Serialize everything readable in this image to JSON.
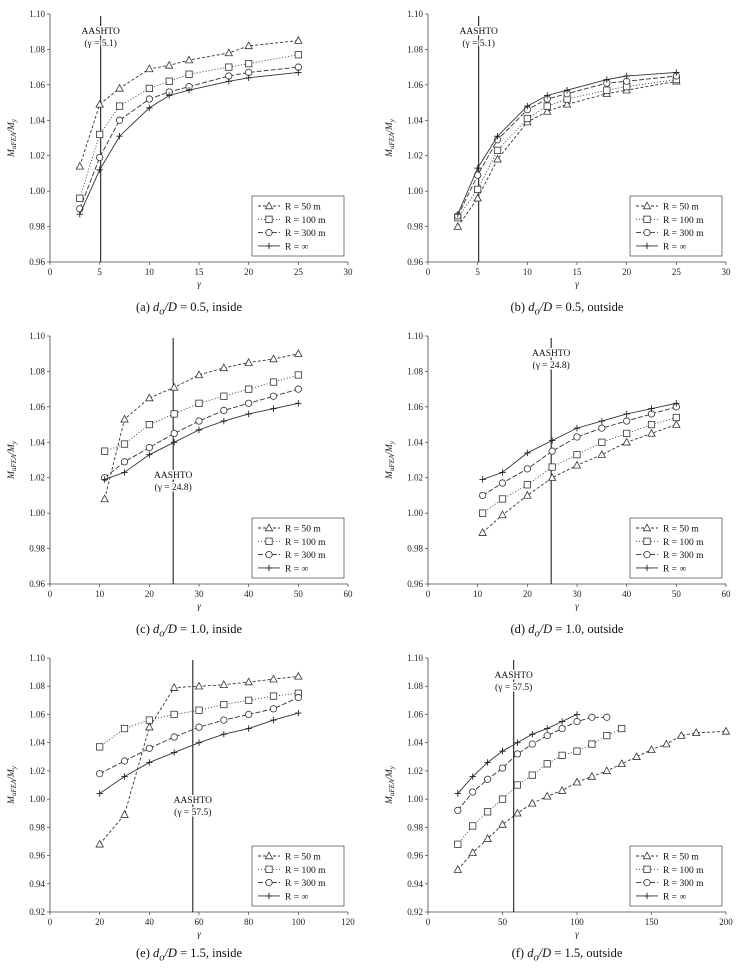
{
  "figure": {
    "series_meta": [
      {
        "key": "r50",
        "label": "R = 50 m",
        "marker": "triangle",
        "dash": "3,2"
      },
      {
        "key": "r100",
        "label": "R = 100 m",
        "marker": "square",
        "dash": "1,2"
      },
      {
        "key": "r300",
        "label": "R = 300 m",
        "marker": "circle",
        "dash": "5,2"
      },
      {
        "key": "rinf",
        "label": "R = ∞",
        "marker": "plus",
        "dash": ""
      }
    ]
  },
  "chart_data": [
    {
      "id": "a",
      "type": "line",
      "caption": "(a) do/D = 0.5, inside",
      "caption_parts": {
        "pre": "(a) ",
        "var": "d",
        "sub": "o",
        "post": "/D = 0.5, inside"
      },
      "xlabel": "γ",
      "ylabel": "MuFEA/My",
      "xlim": [
        0,
        30
      ],
      "ylim": [
        0.96,
        1.1
      ],
      "xticks": [
        0,
        5,
        10,
        15,
        20,
        25,
        30
      ],
      "yticks": [
        0.96,
        0.98,
        1.0,
        1.02,
        1.04,
        1.06,
        1.08,
        1.1
      ],
      "aashto": {
        "x": 5.1,
        "label": "AASHTO",
        "value": "(γ = 5.1)",
        "label_pos": "top"
      },
      "legend": "bottom-right",
      "series": [
        {
          "name": "R = 50 m",
          "x": [
            3,
            5,
            7,
            10,
            12,
            14,
            18,
            20,
            25
          ],
          "y": [
            1.014,
            1.049,
            1.058,
            1.069,
            1.071,
            1.074,
            1.078,
            1.082,
            1.085
          ]
        },
        {
          "name": "R = 100 m",
          "x": [
            3,
            5,
            7,
            10,
            12,
            14,
            18,
            20,
            25
          ],
          "y": [
            0.996,
            1.032,
            1.048,
            1.058,
            1.062,
            1.066,
            1.07,
            1.072,
            1.077
          ]
        },
        {
          "name": "R = 300 m",
          "x": [
            3,
            5,
            7,
            10,
            12,
            14,
            18,
            20,
            25
          ],
          "y": [
            0.99,
            1.019,
            1.04,
            1.052,
            1.056,
            1.059,
            1.065,
            1.067,
            1.07
          ]
        },
        {
          "name": "R = ∞",
          "x": [
            3,
            5,
            7,
            10,
            12,
            14,
            18,
            20,
            25
          ],
          "y": [
            0.987,
            1.012,
            1.031,
            1.047,
            1.054,
            1.057,
            1.062,
            1.064,
            1.067
          ]
        }
      ]
    },
    {
      "id": "b",
      "type": "line",
      "caption": "(b) do/D = 0.5, outside",
      "caption_parts": {
        "pre": "(b) ",
        "var": "d",
        "sub": "o",
        "post": "/D = 0.5, outside"
      },
      "xlabel": "γ",
      "ylabel": "MuFEA/My",
      "xlim": [
        0,
        30
      ],
      "ylim": [
        0.96,
        1.1
      ],
      "xticks": [
        0,
        5,
        10,
        15,
        20,
        25,
        30
      ],
      "yticks": [
        0.96,
        0.98,
        1.0,
        1.02,
        1.04,
        1.06,
        1.08,
        1.1
      ],
      "aashto": {
        "x": 5.1,
        "label": "AASHTO",
        "value": "(γ = 5.1)",
        "label_pos": "top"
      },
      "legend": "bottom-right",
      "series": [
        {
          "name": "R = 50 m",
          "x": [
            3,
            5,
            7,
            10,
            12,
            14,
            18,
            20,
            25
          ],
          "y": [
            0.98,
            0.996,
            1.018,
            1.039,
            1.045,
            1.049,
            1.055,
            1.057,
            1.062
          ]
        },
        {
          "name": "R = 100 m",
          "x": [
            3,
            5,
            7,
            10,
            12,
            14,
            18,
            20,
            25
          ],
          "y": [
            0.985,
            1.001,
            1.023,
            1.041,
            1.048,
            1.052,
            1.057,
            1.059,
            1.063
          ]
        },
        {
          "name": "R = 300 m",
          "x": [
            3,
            5,
            7,
            10,
            12,
            14,
            18,
            20,
            25
          ],
          "y": [
            0.986,
            1.009,
            1.029,
            1.046,
            1.052,
            1.055,
            1.061,
            1.062,
            1.065
          ]
        },
        {
          "name": "R = ∞",
          "x": [
            3,
            5,
            7,
            10,
            12,
            14,
            18,
            20,
            25
          ],
          "y": [
            0.987,
            1.013,
            1.031,
            1.048,
            1.054,
            1.057,
            1.063,
            1.065,
            1.067
          ]
        }
      ]
    },
    {
      "id": "c",
      "type": "line",
      "caption": "(c) do/D = 1.0, inside",
      "caption_parts": {
        "pre": "(c) ",
        "var": "d",
        "sub": "o",
        "post": "/D = 1.0, inside"
      },
      "xlabel": "γ",
      "ylabel": "MuFEA/My",
      "xlim": [
        0,
        60
      ],
      "ylim": [
        0.96,
        1.1
      ],
      "xticks": [
        0,
        10,
        20,
        30,
        40,
        50,
        60
      ],
      "yticks": [
        0.96,
        0.98,
        1.0,
        1.02,
        1.04,
        1.06,
        1.08,
        1.1
      ],
      "aashto": {
        "x": 24.8,
        "label": "AASHTO",
        "value": "(γ = 24.8)",
        "label_pos": "middle"
      },
      "legend": "bottom-right",
      "series": [
        {
          "name": "R = 50 m",
          "x": [
            11,
            15,
            20,
            25,
            30,
            35,
            40,
            45,
            50
          ],
          "y": [
            1.008,
            1.053,
            1.065,
            1.071,
            1.078,
            1.082,
            1.085,
            1.087,
            1.09
          ]
        },
        {
          "name": "R = 100 m",
          "x": [
            11,
            15,
            20,
            25,
            30,
            35,
            40,
            45,
            50
          ],
          "y": [
            1.035,
            1.039,
            1.05,
            1.056,
            1.062,
            1.066,
            1.07,
            1.074,
            1.078
          ]
        },
        {
          "name": "R = 300 m",
          "x": [
            11,
            15,
            20,
            25,
            30,
            35,
            40,
            45,
            50
          ],
          "y": [
            1.02,
            1.029,
            1.037,
            1.045,
            1.052,
            1.058,
            1.062,
            1.066,
            1.07
          ]
        },
        {
          "name": "R = ∞",
          "x": [
            11,
            15,
            20,
            25,
            30,
            35,
            40,
            45,
            50
          ],
          "y": [
            1.019,
            1.023,
            1.033,
            1.04,
            1.047,
            1.052,
            1.056,
            1.059,
            1.062
          ]
        }
      ]
    },
    {
      "id": "d",
      "type": "line",
      "caption": "(d) do/D = 1.0, outside",
      "caption_parts": {
        "pre": "(d) ",
        "var": "d",
        "sub": "o",
        "post": "/D = 1.0, outside"
      },
      "xlabel": "γ",
      "ylabel": "MuFEA/My",
      "xlim": [
        0,
        60
      ],
      "ylim": [
        0.96,
        1.1
      ],
      "xticks": [
        0,
        10,
        20,
        30,
        40,
        50,
        60
      ],
      "yticks": [
        0.96,
        0.98,
        1.0,
        1.02,
        1.04,
        1.06,
        1.08,
        1.1
      ],
      "aashto": {
        "x": 24.8,
        "label": "AASHTO",
        "value": "(γ = 24.8)",
        "label_pos": "top"
      },
      "legend": "bottom-right",
      "series": [
        {
          "name": "R = 50 m",
          "x": [
            11,
            15,
            20,
            25,
            30,
            35,
            40,
            45,
            50
          ],
          "y": [
            0.989,
            0.999,
            1.01,
            1.02,
            1.027,
            1.033,
            1.04,
            1.045,
            1.05
          ]
        },
        {
          "name": "R = 100 m",
          "x": [
            11,
            15,
            20,
            25,
            30,
            35,
            40,
            45,
            50
          ],
          "y": [
            1.0,
            1.008,
            1.016,
            1.026,
            1.033,
            1.04,
            1.045,
            1.05,
            1.054
          ]
        },
        {
          "name": "R = 300 m",
          "x": [
            11,
            15,
            20,
            25,
            30,
            35,
            40,
            45,
            50
          ],
          "y": [
            1.01,
            1.017,
            1.025,
            1.035,
            1.043,
            1.048,
            1.052,
            1.056,
            1.06
          ]
        },
        {
          "name": "R = ∞",
          "x": [
            11,
            15,
            20,
            25,
            30,
            35,
            40,
            45,
            50
          ],
          "y": [
            1.019,
            1.023,
            1.034,
            1.041,
            1.048,
            1.052,
            1.056,
            1.059,
            1.062
          ]
        }
      ]
    },
    {
      "id": "e",
      "type": "line",
      "caption": "(e) do/D = 1.5, inside",
      "caption_parts": {
        "pre": "(e) ",
        "var": "d",
        "sub": "o",
        "post": "/D = 1.5, inside"
      },
      "xlabel": "γ",
      "ylabel": "MuFEA/My",
      "xlim": [
        0,
        120
      ],
      "ylim": [
        0.92,
        1.1
      ],
      "xticks": [
        0,
        20,
        40,
        60,
        80,
        100,
        120
      ],
      "yticks": [
        0.92,
        0.94,
        0.96,
        0.98,
        1.0,
        1.02,
        1.04,
        1.06,
        1.08,
        1.1
      ],
      "aashto": {
        "x": 57.5,
        "label": "AASHTO",
        "value": "(γ = 57.5)",
        "label_pos": "middle"
      },
      "legend": "bottom-right",
      "series": [
        {
          "name": "R = 50 m",
          "x": [
            20,
            30,
            40,
            50,
            60,
            70,
            80,
            90,
            100
          ],
          "y": [
            0.968,
            0.989,
            1.051,
            1.079,
            1.08,
            1.081,
            1.083,
            1.085,
            1.087
          ]
        },
        {
          "name": "R = 100 m",
          "x": [
            20,
            30,
            40,
            50,
            60,
            70,
            80,
            90,
            100
          ],
          "y": [
            1.037,
            1.05,
            1.056,
            1.06,
            1.063,
            1.067,
            1.07,
            1.073,
            1.075
          ]
        },
        {
          "name": "R = 300 m",
          "x": [
            20,
            30,
            40,
            50,
            60,
            70,
            80,
            90,
            100
          ],
          "y": [
            1.018,
            1.027,
            1.036,
            1.044,
            1.051,
            1.056,
            1.06,
            1.064,
            1.072
          ]
        },
        {
          "name": "R = ∞",
          "x": [
            20,
            30,
            40,
            50,
            60,
            70,
            80,
            90,
            100
          ],
          "y": [
            1.004,
            1.016,
            1.026,
            1.033,
            1.04,
            1.046,
            1.05,
            1.056,
            1.061
          ]
        }
      ]
    },
    {
      "id": "f",
      "type": "line",
      "caption": "(f) do/D = 1.5, outside",
      "caption_parts": {
        "pre": "(f) ",
        "var": "d",
        "sub": "o",
        "post": "/D = 1.5, outside"
      },
      "xlabel": "γ",
      "ylabel": "MuFEA/My",
      "xlim": [
        0,
        200
      ],
      "ylim": [
        0.92,
        1.1
      ],
      "xticks": [
        0,
        50,
        100,
        150,
        200
      ],
      "yticks": [
        0.92,
        0.94,
        0.96,
        0.98,
        1.0,
        1.02,
        1.04,
        1.06,
        1.08,
        1.1
      ],
      "aashto": {
        "x": 57.5,
        "label": "AASHTO",
        "value": "(γ = 57.5)",
        "label_pos": "top"
      },
      "legend": "bottom-right",
      "series": [
        {
          "name": "R = 50 m",
          "x": [
            20,
            30,
            40,
            50,
            60,
            70,
            80,
            90,
            100,
            110,
            120,
            130,
            140,
            150,
            160,
            170,
            180,
            200
          ],
          "y": [
            0.95,
            0.962,
            0.972,
            0.982,
            0.99,
            0.997,
            1.002,
            1.006,
            1.012,
            1.016,
            1.02,
            1.025,
            1.03,
            1.035,
            1.039,
            1.045,
            1.047,
            1.048
          ]
        },
        {
          "name": "R = 100 m",
          "x": [
            20,
            30,
            40,
            50,
            60,
            70,
            80,
            90,
            100,
            110,
            120,
            130
          ],
          "y": [
            0.968,
            0.981,
            0.991,
            1.0,
            1.01,
            1.017,
            1.025,
            1.031,
            1.034,
            1.039,
            1.045,
            1.05
          ]
        },
        {
          "name": "R = 300 m",
          "x": [
            20,
            30,
            40,
            50,
            60,
            70,
            80,
            90,
            100,
            110,
            120
          ],
          "y": [
            0.992,
            1.005,
            1.014,
            1.022,
            1.032,
            1.039,
            1.045,
            1.05,
            1.055,
            1.058,
            1.058
          ]
        },
        {
          "name": "R = ∞",
          "x": [
            20,
            30,
            40,
            50,
            60,
            70,
            80,
            90,
            100
          ],
          "y": [
            1.004,
            1.016,
            1.026,
            1.034,
            1.04,
            1.046,
            1.05,
            1.055,
            1.06
          ]
        }
      ]
    }
  ]
}
